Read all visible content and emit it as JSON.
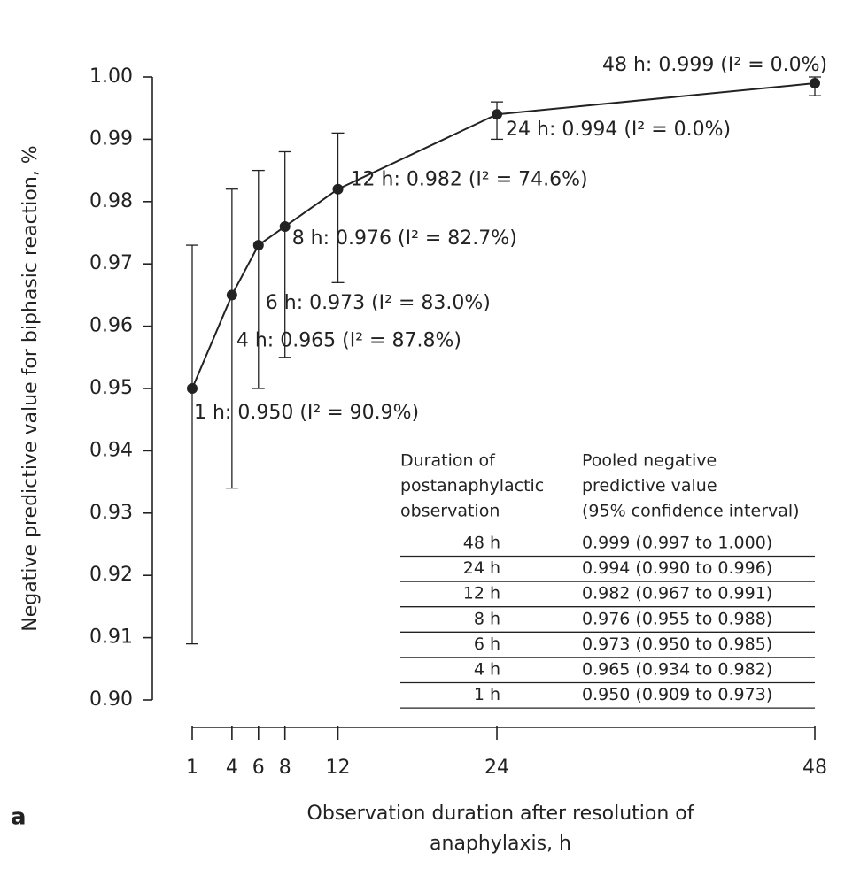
{
  "chart_data": {
    "type": "line",
    "y_label": "Negative predictive value for biphasic reaction, %",
    "x_label": [
      "Observation duration after resolution of",
      "anaphylaxis, h"
    ],
    "panel_label": "a",
    "x": [
      1,
      4,
      6,
      8,
      12,
      24,
      48
    ],
    "series": [
      {
        "color": "#222222",
        "values": [
          0.95,
          0.965,
          0.973,
          0.976,
          0.982,
          0.994,
          0.999
        ],
        "ci_lower": [
          0.909,
          0.934,
          0.95,
          0.955,
          0.967,
          0.99,
          0.997
        ],
        "ci_upper": [
          0.973,
          0.982,
          0.985,
          0.988,
          0.991,
          0.996,
          1.0
        ],
        "value_labels": [
          "1 h: 0.950 (I² = 90.9%)",
          "4 h: 0.965 (I² = 87.8%)",
          "6 h: 0.973 (I² = 83.0%)",
          "8 h: 0.976 (I² = 82.7%)",
          "12 h: 0.982 (I² = 74.6%)",
          "24 h: 0.994 (I² = 0.0%)",
          "48 h: 0.999 (I² = 0.0%)"
        ]
      }
    ],
    "xlim": [
      1,
      48
    ],
    "xticks": [
      1,
      4,
      6,
      8,
      12,
      24,
      48
    ],
    "ylim": [
      0.9,
      1.0
    ],
    "yticks": [
      {
        "value": 0.9,
        "label": "0.90"
      },
      0.91,
      0.92,
      0.93,
      0.94,
      0.95,
      0.96,
      0.97,
      0.98,
      0.99,
      {
        "value": 1.0,
        "label": "1.00"
      }
    ],
    "table": {
      "headers": [
        [
          "Duration of",
          "postanaphylactic",
          "observation"
        ],
        [
          "Pooled negative",
          "predictive value",
          "(95% confidence interval)"
        ]
      ],
      "rows": [
        [
          "48 h",
          "0.999 (0.997 to 1.000)"
        ],
        [
          "24 h",
          "0.994 (0.990 to 0.996)"
        ],
        [
          "12 h",
          "0.982 (0.967 to 0.991)"
        ],
        [
          "8 h",
          "0.976 (0.955 to 0.988)"
        ],
        [
          "6 h",
          "0.973 (0.950 to 0.985)"
        ],
        [
          "4 h",
          "0.965 (0.934 to 0.982)"
        ],
        [
          "1 h",
          "0.950 (0.909 to 0.973)"
        ]
      ]
    }
  }
}
